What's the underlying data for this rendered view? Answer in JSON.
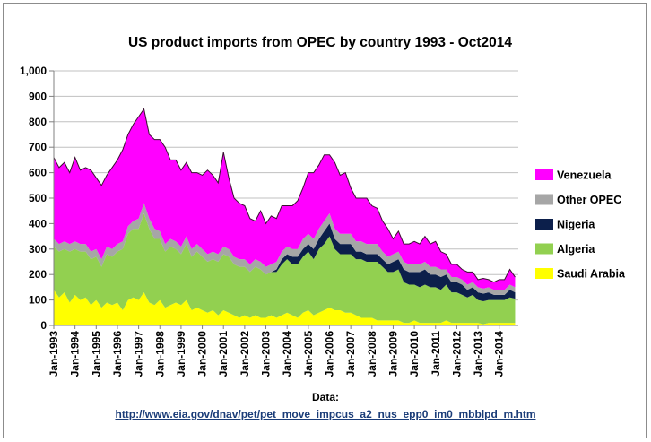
{
  "chart_data": {
    "type": "area",
    "stacked": true,
    "title": "US product imports from OPEC by country 1993 - Oct2014",
    "xlabel": "",
    "ylabel": "",
    "ylim": [
      0,
      1000
    ],
    "yticks": [
      "0",
      "100",
      "200",
      "300",
      "400",
      "500",
      "600",
      "700",
      "800",
      "900",
      "1,000"
    ],
    "xticks": [
      "Jan-1993",
      "Jan-1994",
      "Jan-1995",
      "Jan-1996",
      "Jan-1997",
      "Jan-1998",
      "Jan-1999",
      "Jan-2000",
      "Jan-2001",
      "Jan-2002",
      "Jan-2003",
      "Jan-2004",
      "Jan-2005",
      "Jan-2006",
      "Jan-2007",
      "Jan-2008",
      "Jan-2009",
      "Jan-2010",
      "Jan-2011",
      "Jan-2012",
      "Jan-2013",
      "Jan-2014"
    ],
    "x_unit": "year (quarterly samples, 1993.0 – 2014.75)",
    "x": [
      1993.0,
      1993.25,
      1993.5,
      1993.75,
      1994.0,
      1994.25,
      1994.5,
      1994.75,
      1995.0,
      1995.25,
      1995.5,
      1995.75,
      1996.0,
      1996.25,
      1996.5,
      1996.75,
      1997.0,
      1997.25,
      1997.5,
      1997.75,
      1998.0,
      1998.25,
      1998.5,
      1998.75,
      1999.0,
      1999.25,
      1999.5,
      1999.75,
      2000.0,
      2000.25,
      2000.5,
      2000.75,
      2001.0,
      2001.25,
      2001.5,
      2001.75,
      2002.0,
      2002.25,
      2002.5,
      2002.75,
      2003.0,
      2003.25,
      2003.5,
      2003.75,
      2004.0,
      2004.25,
      2004.5,
      2004.75,
      2005.0,
      2005.25,
      2005.5,
      2005.75,
      2006.0,
      2006.25,
      2006.5,
      2006.75,
      2007.0,
      2007.25,
      2007.5,
      2007.75,
      2008.0,
      2008.25,
      2008.5,
      2008.75,
      2009.0,
      2009.25,
      2009.5,
      2009.75,
      2010.0,
      2010.25,
      2010.5,
      2010.75,
      2011.0,
      2011.25,
      2011.5,
      2011.75,
      2012.0,
      2012.25,
      2012.5,
      2012.75,
      2013.0,
      2013.25,
      2013.5,
      2013.75,
      2014.0,
      2014.25,
      2014.5,
      2014.75
    ],
    "series": [
      {
        "name": "Saudi Arabia",
        "color": "#ffff00",
        "values": [
          140,
          110,
          130,
          90,
          120,
          100,
          110,
          80,
          100,
          70,
          90,
          80,
          90,
          60,
          100,
          110,
          100,
          130,
          90,
          80,
          100,
          70,
          80,
          90,
          80,
          100,
          60,
          70,
          60,
          50,
          60,
          40,
          60,
          50,
          40,
          30,
          40,
          30,
          40,
          30,
          30,
          40,
          30,
          40,
          50,
          40,
          30,
          50,
          60,
          40,
          50,
          60,
          70,
          60,
          60,
          50,
          50,
          40,
          30,
          30,
          30,
          20,
          20,
          20,
          20,
          20,
          10,
          10,
          20,
          10,
          10,
          10,
          10,
          10,
          20,
          10,
          10,
          10,
          10,
          10,
          10,
          5,
          10,
          10,
          10,
          10,
          10,
          10
        ]
      },
      {
        "name": "Algeria",
        "color": "#92d050",
        "values": [
          170,
          180,
          170,
          200,
          180,
          190,
          180,
          180,
          170,
          160,
          190,
          190,
          200,
          240,
          260,
          270,
          280,
          310,
          290,
          260,
          240,
          220,
          230,
          210,
          200,
          220,
          210,
          220,
          210,
          200,
          200,
          210,
          220,
          220,
          200,
          200,
          190,
          180,
          190,
          190,
          170,
          170,
          180,
          200,
          210,
          200,
          210,
          220,
          230,
          220,
          250,
          260,
          280,
          240,
          220,
          230,
          230,
          220,
          230,
          220,
          220,
          230,
          210,
          190,
          190,
          200,
          160,
          150,
          140,
          140,
          150,
          140,
          140,
          130,
          140,
          120,
          120,
          110,
          100,
          110,
          90,
          90,
          90,
          90,
          90,
          90,
          100,
          95
        ]
      },
      {
        "name": "Nigeria",
        "color": "#0c1f4b",
        "values": [
          0,
          0,
          0,
          0,
          0,
          0,
          0,
          0,
          0,
          0,
          0,
          0,
          0,
          0,
          0,
          0,
          0,
          0,
          0,
          0,
          0,
          0,
          0,
          0,
          0,
          0,
          0,
          0,
          0,
          0,
          0,
          0,
          0,
          0,
          0,
          0,
          0,
          0,
          0,
          0,
          0,
          0,
          10,
          20,
          20,
          30,
          30,
          30,
          30,
          40,
          40,
          50,
          50,
          40,
          40,
          40,
          40,
          30,
          30,
          30,
          30,
          30,
          30,
          30,
          40,
          40,
          50,
          50,
          50,
          60,
          60,
          50,
          50,
          50,
          40,
          40,
          40,
          40,
          30,
          30,
          30,
          30,
          30,
          20,
          20,
          20,
          30,
          25
        ]
      },
      {
        "name": "Other OPEC",
        "color": "#a6a6a6",
        "values": [
          30,
          30,
          30,
          30,
          30,
          30,
          30,
          30,
          30,
          30,
          30,
          30,
          30,
          30,
          30,
          30,
          40,
          40,
          40,
          40,
          30,
          30,
          30,
          30,
          30,
          30,
          30,
          30,
          30,
          30,
          30,
          30,
          30,
          30,
          30,
          30,
          30,
          30,
          30,
          30,
          30,
          30,
          30,
          30,
          30,
          30,
          30,
          40,
          40,
          40,
          40,
          40,
          40,
          40,
          40,
          40,
          40,
          40,
          40,
          40,
          40,
          40,
          30,
          30,
          30,
          30,
          30,
          30,
          30,
          30,
          30,
          30,
          30,
          30,
          20,
          20,
          20,
          20,
          20,
          20,
          20,
          20,
          20,
          20,
          20,
          20,
          20,
          20
        ]
      },
      {
        "name": "Venezuela",
        "color": "#ff00ff",
        "values": [
          320,
          300,
          310,
          280,
          330,
          290,
          300,
          320,
          280,
          290,
          280,
          320,
          330,
          360,
          360,
          380,
          400,
          370,
          330,
          350,
          360,
          380,
          310,
          320,
          300,
          290,
          300,
          280,
          290,
          330,
          300,
          280,
          370,
          280,
          230,
          220,
          210,
          180,
          150,
          200,
          170,
          190,
          170,
          180,
          160,
          170,
          190,
          200,
          240,
          260,
          250,
          260,
          230,
          260,
          230,
          240,
          180,
          170,
          170,
          180,
          150,
          140,
          120,
          110,
          60,
          80,
          70,
          80,
          90,
          80,
          100,
          90,
          100,
          70,
          60,
          50,
          50,
          40,
          50,
          40,
          30,
          40,
          30,
          30,
          40,
          40,
          60,
          40
        ]
      }
    ]
  },
  "legend": [
    {
      "label": "Venezuela",
      "color": "#ff00ff"
    },
    {
      "label": "Other OPEC",
      "color": "#a6a6a6"
    },
    {
      "label": "Nigeria",
      "color": "#0c1f4b"
    },
    {
      "label": "Algeria",
      "color": "#92d050"
    },
    {
      "label": "Saudi Arabia",
      "color": "#ffff00"
    }
  ],
  "source": {
    "caption": "Data:",
    "link_text": "http://www.eia.gov/dnav/pet/pet_move_impcus_a2_nus_epp0_im0_mbblpd_m.htm"
  }
}
